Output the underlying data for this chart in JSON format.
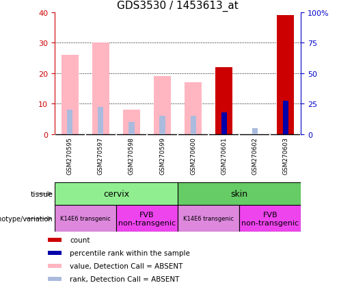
{
  "title": "GDS3530 / 1453613_at",
  "samples": [
    "GSM270595",
    "GSM270597",
    "GSM270598",
    "GSM270599",
    "GSM270600",
    "GSM270601",
    "GSM270602",
    "GSM270603"
  ],
  "count_values": [
    0,
    0,
    0,
    0,
    0,
    22,
    0,
    39
  ],
  "rank_values": [
    0,
    0,
    0,
    0,
    0,
    7,
    0,
    11
  ],
  "value_absent": [
    26,
    30,
    8,
    19,
    17,
    0,
    0,
    0
  ],
  "rank_absent": [
    8,
    9,
    4,
    6,
    6,
    0,
    2,
    0
  ],
  "ylim_left": [
    0,
    40
  ],
  "ylim_right": [
    0,
    100
  ],
  "yticks_left": [
    0,
    10,
    20,
    30,
    40
  ],
  "yticks_right": [
    0,
    25,
    50,
    75,
    100
  ],
  "tissue_groups": [
    {
      "label": "cervix",
      "start": 0,
      "end": 4,
      "color": "#90EE90"
    },
    {
      "label": "skin",
      "start": 4,
      "end": 8,
      "color": "#66CC66"
    }
  ],
  "genotype_groups": [
    {
      "label": "K14E6 transgenic",
      "start": 0,
      "end": 2,
      "color": "#DD88DD",
      "fontsize": 6
    },
    {
      "label": "FVB\nnon-transgenic",
      "start": 2,
      "end": 4,
      "color": "#EE44EE",
      "fontsize": 8
    },
    {
      "label": "K14E6 transgenic",
      "start": 4,
      "end": 6,
      "color": "#DD88DD",
      "fontsize": 6
    },
    {
      "label": "FVB\nnon-transgenic",
      "start": 6,
      "end": 8,
      "color": "#EE44EE",
      "fontsize": 8
    }
  ],
  "color_count": "#CC0000",
  "color_rank": "#0000AA",
  "color_value_absent": "#FFB6C1",
  "color_rank_absent": "#AABBDD",
  "legend_items": [
    {
      "label": "count",
      "color": "#CC0000"
    },
    {
      "label": "percentile rank within the sample",
      "color": "#0000AA"
    },
    {
      "label": "value, Detection Call = ABSENT",
      "color": "#FFB6C1"
    },
    {
      "label": "rank, Detection Call = ABSENT",
      "color": "#AABBDD"
    }
  ],
  "left_axis_color": "#CC0000",
  "right_axis_color": "#0000CC",
  "background_color": "#FFFFFF",
  "plot_bg_color": "#FFFFFF",
  "label_bg_color": "#C8C8C8",
  "grid_color": "#000000"
}
